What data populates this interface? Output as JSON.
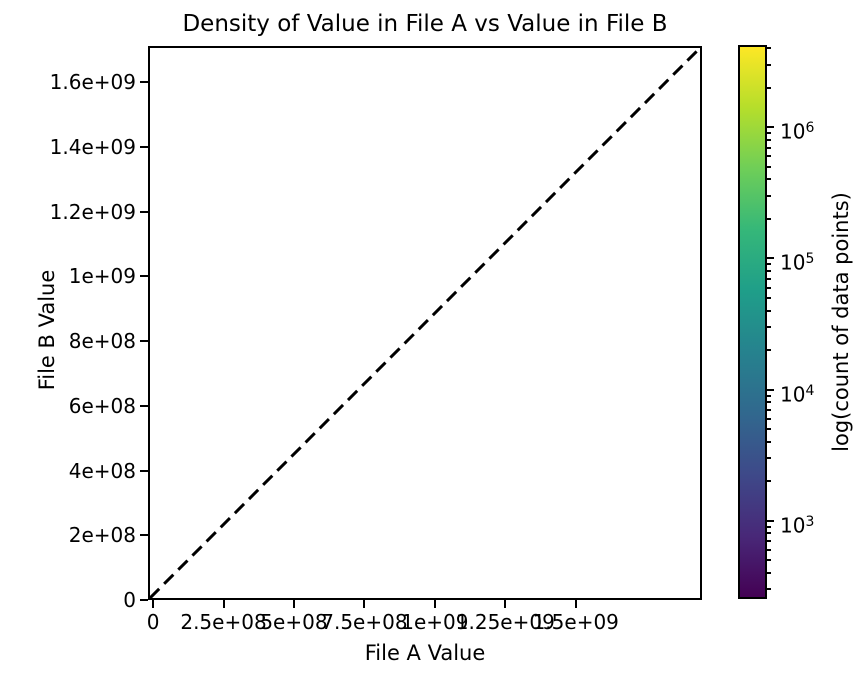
{
  "figure": {
    "background": "#ffffff",
    "text_color": "#000000",
    "axis_color": "#000000"
  },
  "chart_data": {
    "type": "heatmap",
    "subtype": "2d-density plot with log-scaled count colorbar (plot interior appears empty; density lies along the diagonal)",
    "title": "Density of Value in File A vs Value in File B",
    "xlabel": "File A Value",
    "ylabel": "File B Value",
    "xlim": [
      -18000000,
      1948000000
    ],
    "ylim": [
      0,
      1712000000
    ],
    "grid": false,
    "legend": "none",
    "x_ticks": [
      {
        "value": 0,
        "label": "0"
      },
      {
        "value": 250000000,
        "label": "2.5e+08"
      },
      {
        "value": 500000000,
        "label": "5e+08"
      },
      {
        "value": 750000000,
        "label": "7.5e+08"
      },
      {
        "value": 1000000000,
        "label": "1e+09"
      },
      {
        "value": 1250000000,
        "label": "1.25e+09"
      },
      {
        "value": 1500000000,
        "label": "1.5e+09"
      }
    ],
    "y_ticks": [
      {
        "value": 0,
        "label": "0"
      },
      {
        "value": 200000000,
        "label": "2e+08"
      },
      {
        "value": 400000000,
        "label": "4e+08"
      },
      {
        "value": 600000000,
        "label": "6e+08"
      },
      {
        "value": 800000000,
        "label": "8e+08"
      },
      {
        "value": 1000000000,
        "label": "1e+09"
      },
      {
        "value": 1200000000,
        "label": "1.2e+09"
      },
      {
        "value": 1400000000,
        "label": "1.4e+09"
      },
      {
        "value": 1600000000,
        "label": "1.6e+09"
      }
    ],
    "identity_line": {
      "meaning": "y = x reference line spanning the full plot diagonal corner to corner",
      "color": "#000000",
      "style": "dashed",
      "dash_on": 13,
      "dash_off": 7,
      "width": 3
    },
    "colorbar": {
      "label": "log(count of data points)",
      "scale": "log",
      "vmin": 253,
      "vmax": 4240000,
      "major_ticks": [
        {
          "value": 1000000,
          "base": "10",
          "exponent": "6"
        },
        {
          "value": 100000,
          "base": "10",
          "exponent": "5"
        },
        {
          "value": 10000,
          "base": "10",
          "exponent": "4"
        },
        {
          "value": 1000,
          "base": "10",
          "exponent": "3"
        }
      ],
      "colormap": "viridis",
      "colormap_stops": [
        "#440154",
        "#482878",
        "#3e4989",
        "#31688e",
        "#26828e",
        "#1f9e89",
        "#35b779",
        "#6ece58",
        "#b5de2b",
        "#fde725"
      ]
    }
  }
}
